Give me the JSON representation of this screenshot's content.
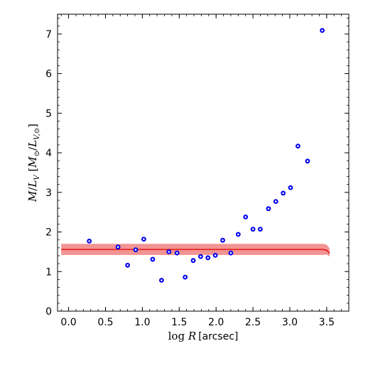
{
  "chart_data": {
    "type": "scatter",
    "xlabel": "log R [arcsec]",
    "xlabel_parts": {
      "prefix": "log ",
      "var": "R",
      "unit": "[arcsec]"
    },
    "ylabel": "M/L_V [M_⊙/L_V,⊙]",
    "ylabel_parts": {
      "main": "M",
      "slash": "/",
      "L": "L",
      "sub": "V",
      "bracket_open": " [",
      "msun": "M",
      "sun": "⊙",
      "slash2": "/",
      "lsun": "L",
      "lsub": "V,⊙",
      "bracket_close": "]"
    },
    "xlim": [
      -0.15,
      3.8
    ],
    "ylim": [
      0,
      7.5
    ],
    "xticks": [
      0.0,
      0.5,
      1.0,
      1.5,
      2.0,
      2.5,
      3.0,
      3.5
    ],
    "xtick_labels": [
      "0.0",
      "0.5",
      "1.0",
      "1.5",
      "2.0",
      "2.5",
      "3.0",
      "3.5"
    ],
    "yticks": [
      0,
      1,
      2,
      3,
      4,
      5,
      6,
      7
    ],
    "ytick_labels": [
      "0",
      "1",
      "2",
      "3",
      "4",
      "5",
      "6",
      "7"
    ],
    "points": {
      "x": [
        0.28,
        0.67,
        0.8,
        0.91,
        1.02,
        1.14,
        1.26,
        1.36,
        1.47,
        1.58,
        1.69,
        1.79,
        1.89,
        1.99,
        2.09,
        2.2,
        2.3,
        2.4,
        2.5,
        2.6,
        2.71,
        2.81,
        2.91,
        3.01,
        3.11,
        3.24,
        3.44
      ],
      "y": [
        1.77,
        1.62,
        1.16,
        1.55,
        1.82,
        1.31,
        0.78,
        1.5,
        1.47,
        0.86,
        1.28,
        1.38,
        1.35,
        1.41,
        1.79,
        1.47,
        1.94,
        2.38,
        2.07,
        2.07,
        2.59,
        2.77,
        2.98,
        3.12,
        4.17,
        3.79,
        7.09
      ]
    },
    "model_band": {
      "x": [
        -0.1,
        3.45,
        3.5,
        3.54
      ],
      "center": [
        1.56,
        1.56,
        1.54,
        1.46
      ],
      "lower": [
        1.42,
        1.42,
        1.43,
        1.38
      ],
      "upper": [
        1.7,
        1.7,
        1.68,
        1.58
      ]
    },
    "colors": {
      "points": "#0000ee",
      "band": "#f08080",
      "line": "#e00000"
    }
  }
}
